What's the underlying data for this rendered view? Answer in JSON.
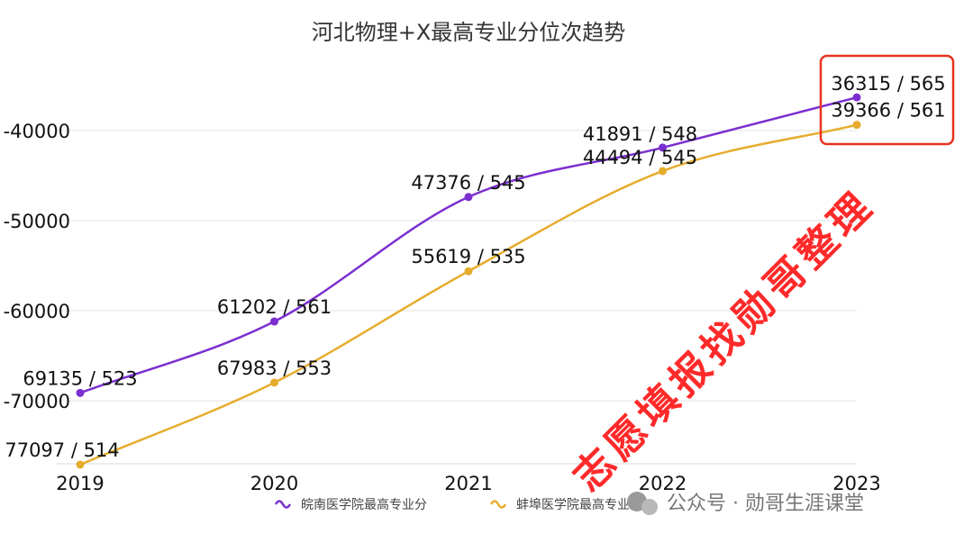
{
  "chart_data": {
    "type": "line",
    "title": "河北物理+X最高专业分位次趋势",
    "categories": [
      "2019",
      "2020",
      "2021",
      "2022",
      "2023"
    ],
    "ylim": [
      -78000,
      -34000
    ],
    "yticks": [
      -40000,
      -50000,
      -60000,
      -70000
    ],
    "ytick_labels": [
      "-40000",
      "-50000",
      "-60000",
      "-70000"
    ],
    "grid": true,
    "legend_position": "bottom-center",
    "series": [
      {
        "name": "皖南医学院最高专业分",
        "color": "#7b2fd0",
        "values": [
          -69135,
          -61202,
          -47376,
          -41891,
          -36315
        ],
        "labels": [
          "69135 / 523",
          "61202 / 561",
          "47376 / 545",
          "41891 / 548",
          "36315 / 565"
        ]
      },
      {
        "name": "蚌埠医学院最高专业分",
        "color": "#e6ac2e",
        "values": [
          -77097,
          -67983,
          -55619,
          -44494,
          -39366
        ],
        "labels": [
          "77097 / 514",
          "67983 / 553",
          "55619 / 535",
          "44494 / 545",
          "39366 / 561"
        ]
      }
    ],
    "highlight_color": "#e8331e"
  },
  "watermark": "志愿填报找勋哥整理",
  "footer": "公众号 · 勋哥生涯课堂"
}
